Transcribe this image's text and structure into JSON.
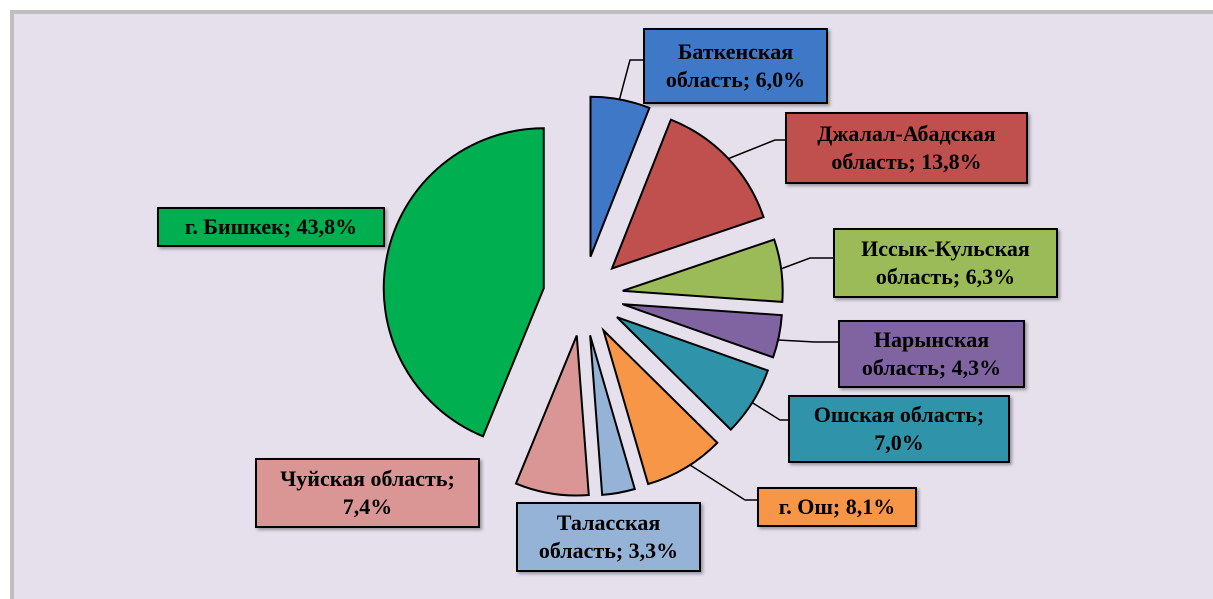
{
  "chart_data": {
    "type": "pie",
    "labels": [
      "Баткенская область; 6,0%",
      "Джалал-Абадская область; 13,8%",
      "Иссык-Кульская область; 6,3%",
      "Нарынская область; 4,3%",
      "Ошская область; 7,0%",
      "г. Ош; 8,1%",
      "Таласская область; 3,3%",
      "Чуйская область; 7,4%",
      "г. Бишкек; 43,8%"
    ],
    "values": [
      6.0,
      13.8,
      6.3,
      4.3,
      7.0,
      8.1,
      3.3,
      7.4,
      43.8
    ],
    "value_labels": [
      "Баткенская область; 6,0%",
      "Джалал-Абадская область; 13,8%",
      "Иссык-Кульская область; 6,3%",
      "Нарынская область; 4,3%",
      "Ошская область; 7,0%",
      "г. Ош; 8,1%",
      "Таласская область; 3,3%",
      "Чуйская область; 7,4%",
      "г. Бишкек; 43,8%"
    ],
    "colors": [
      "#3f78c6",
      "#c0504d",
      "#9bbb59",
      "#8064a2",
      "#2f93aa",
      "#f79646",
      "#95b3d7",
      "#d99694",
      "#00b050"
    ]
  }
}
